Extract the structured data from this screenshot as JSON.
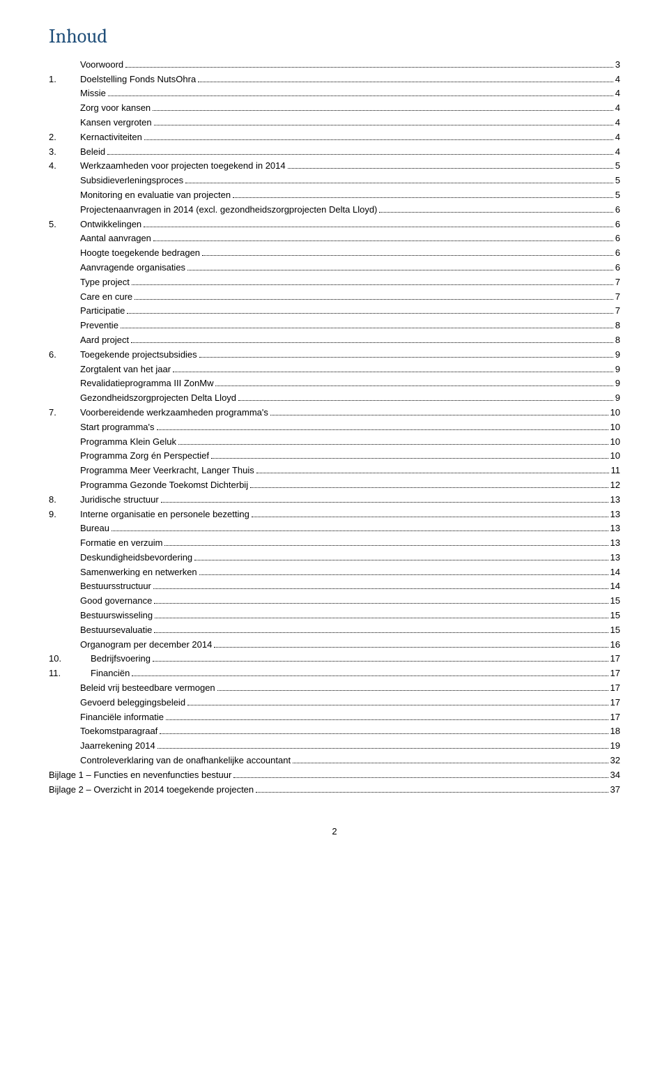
{
  "title": "Inhoud",
  "pageNumber": "2",
  "entries": [
    {
      "num": "",
      "label": "Voorwoord",
      "page": "3",
      "indent": 0
    },
    {
      "num": "1.",
      "label": "Doelstelling Fonds NutsOhra",
      "page": "4",
      "indent": 0
    },
    {
      "num": "",
      "label": "Missie",
      "page": "4",
      "indent": 1
    },
    {
      "num": "",
      "label": "Zorg voor kansen",
      "page": "4",
      "indent": 1
    },
    {
      "num": "",
      "label": "Kansen vergroten",
      "page": "4",
      "indent": 1
    },
    {
      "num": "2.",
      "label": "Kernactiviteiten",
      "page": "4",
      "indent": 0
    },
    {
      "num": "3.",
      "label": "Beleid",
      "page": "4",
      "indent": 0
    },
    {
      "num": "4.",
      "label": "Werkzaamheden voor projecten toegekend in 2014",
      "page": "5",
      "indent": 0
    },
    {
      "num": "",
      "label": "Subsidieverleningsproces",
      "page": "5",
      "indent": 1
    },
    {
      "num": "",
      "label": "Monitoring en evaluatie van projecten",
      "page": "5",
      "indent": 1
    },
    {
      "num": "",
      "label": "Projectenaanvragen in 2014 (excl. gezondheidszorgprojecten Delta Lloyd)",
      "page": "6",
      "indent": 1
    },
    {
      "num": "5.",
      "label": "Ontwikkelingen",
      "page": "6",
      "indent": 0
    },
    {
      "num": "",
      "label": "Aantal aanvragen",
      "page": "6",
      "indent": 1
    },
    {
      "num": "",
      "label": "Hoogte toegekende bedragen",
      "page": "6",
      "indent": 1
    },
    {
      "num": "",
      "label": "Aanvragende organisaties",
      "page": "6",
      "indent": 1
    },
    {
      "num": "",
      "label": "Type project",
      "page": "7",
      "indent": 1
    },
    {
      "num": "",
      "label": "Care en cure",
      "page": "7",
      "indent": 1
    },
    {
      "num": "",
      "label": "Participatie",
      "page": "7",
      "indent": 1
    },
    {
      "num": "",
      "label": "Preventie",
      "page": "8",
      "indent": 1
    },
    {
      "num": "",
      "label": "Aard project",
      "page": "8",
      "indent": 1
    },
    {
      "num": "6.",
      "label": "Toegekende projectsubsidies",
      "page": "9",
      "indent": 0
    },
    {
      "num": "",
      "label": "Zorgtalent van het jaar",
      "page": "9",
      "indent": 1
    },
    {
      "num": "",
      "label": "Revalidatieprogramma III ZonMw",
      "page": "9",
      "indent": 1
    },
    {
      "num": "",
      "label": "Gezondheidszorgprojecten Delta Lloyd",
      "page": "9",
      "indent": 1
    },
    {
      "num": "7.",
      "label": "Voorbereidende werkzaamheden programma's",
      "page": "10",
      "indent": 0
    },
    {
      "num": "",
      "label": "Start programma's",
      "page": "10",
      "indent": 1
    },
    {
      "num": "",
      "label": "Programma Klein Geluk",
      "page": "10",
      "indent": 1
    },
    {
      "num": "",
      "label": "Programma Zorg én Perspectief",
      "page": "10",
      "indent": 1
    },
    {
      "num": "",
      "label": "Programma Meer Veerkracht, Langer Thuis",
      "page": "11",
      "indent": 1
    },
    {
      "num": "",
      "label": "Programma Gezonde Toekomst Dichterbij",
      "page": "12",
      "indent": 1
    },
    {
      "num": "8.",
      "label": "Juridische structuur",
      "page": "13",
      "indent": 0
    },
    {
      "num": "9.",
      "label": "Interne organisatie en personele bezetting",
      "page": "13",
      "indent": 0
    },
    {
      "num": "",
      "label": "Bureau",
      "page": "13",
      "indent": 1
    },
    {
      "num": "",
      "label": "Formatie en verzuim",
      "page": "13",
      "indent": 1
    },
    {
      "num": "",
      "label": "Deskundigheidsbevordering",
      "page": "13",
      "indent": 1
    },
    {
      "num": "",
      "label": "Samenwerking en netwerken",
      "page": "14",
      "indent": 1
    },
    {
      "num": "",
      "label": "Bestuursstructuur",
      "page": "14",
      "indent": 1
    },
    {
      "num": "",
      "label": "Good governance",
      "page": "15",
      "indent": 1
    },
    {
      "num": "",
      "label": "Bestuurswisseling",
      "page": "15",
      "indent": 1
    },
    {
      "num": "",
      "label": "Bestuursevaluatie",
      "page": "15",
      "indent": 1
    },
    {
      "num": "",
      "label": "Organogram per december 2014",
      "page": "16",
      "indent": 1
    },
    {
      "num": "10.",
      "label": "Bedrijfsvoering",
      "page": "17",
      "indent": 0,
      "wide": true
    },
    {
      "num": "11.",
      "label": "Financiën",
      "page": "17",
      "indent": 0,
      "wide": true
    },
    {
      "num": "",
      "label": "Beleid vrij besteedbare vermogen",
      "page": "17",
      "indent": 1
    },
    {
      "num": "",
      "label": "Gevoerd beleggingsbeleid",
      "page": "17",
      "indent": 1
    },
    {
      "num": "",
      "label": "Financiële informatie",
      "page": "17",
      "indent": 1
    },
    {
      "num": "",
      "label": "Toekomstparagraaf",
      "page": "18",
      "indent": 1
    },
    {
      "num": "",
      "label": "Jaarrekening 2014",
      "page": "19",
      "indent": 1
    },
    {
      "num": "",
      "label": "Controleverklaring van de onafhankelijke accountant",
      "page": "32",
      "indent": 1
    },
    {
      "num": "",
      "label": "Bijlage 1 – Functies en nevenfuncties bestuur",
      "page": "34",
      "indent": 0,
      "nonum": true
    },
    {
      "num": "",
      "label": "Bijlage 2 – Overzicht in 2014 toegekende projecten",
      "page": "37",
      "indent": 0,
      "nonum": true
    }
  ]
}
